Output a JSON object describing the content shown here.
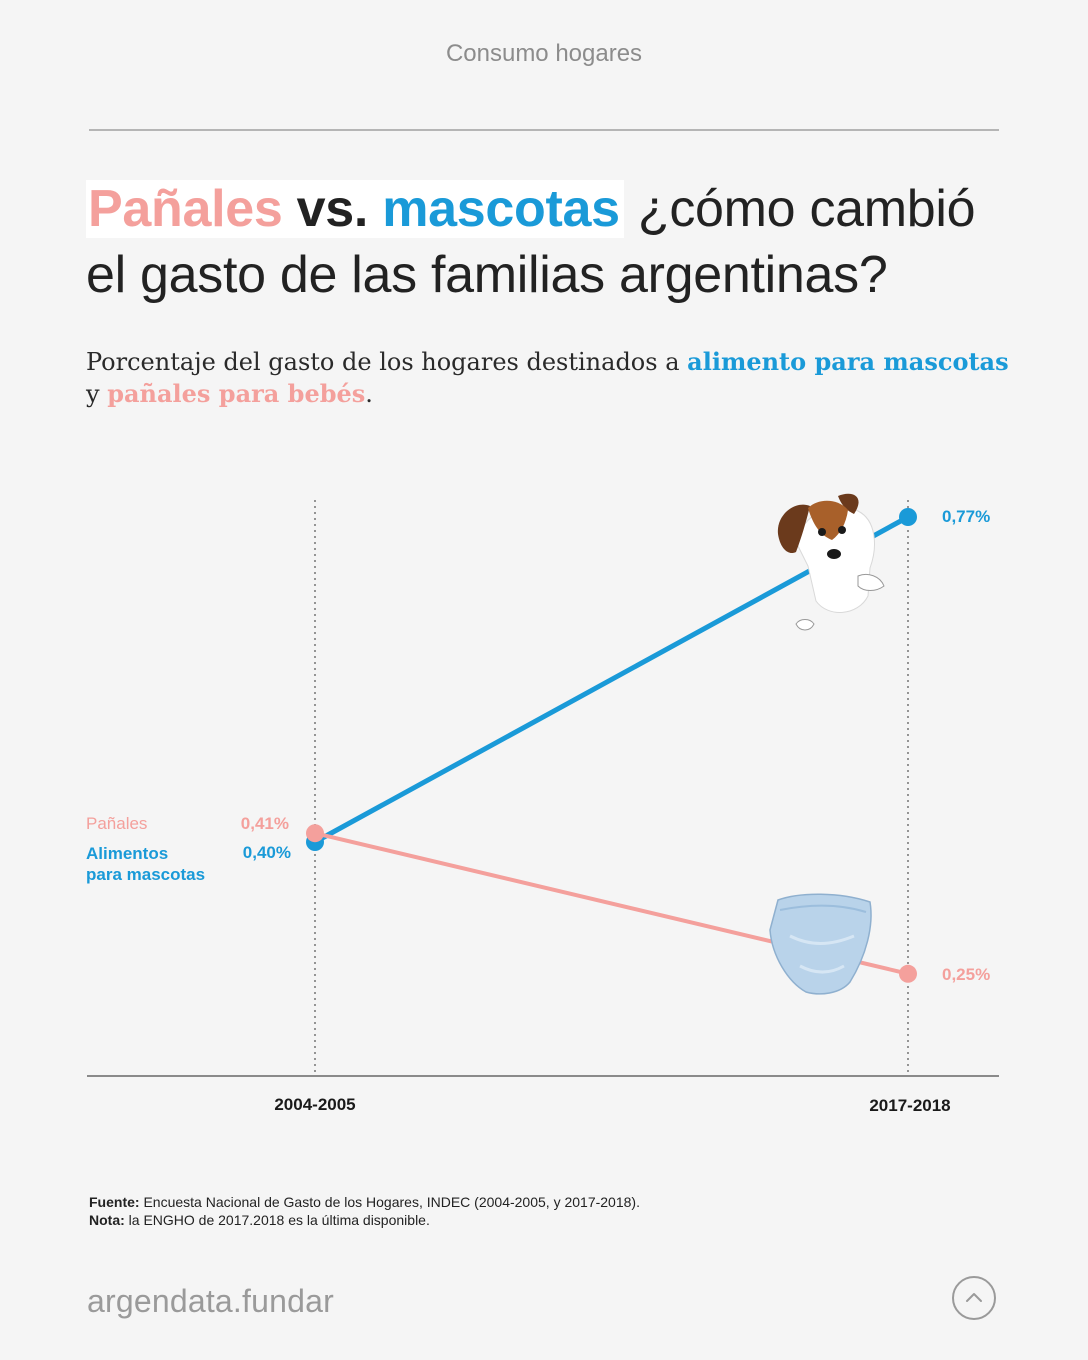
{
  "header": {
    "kicker": "Consumo hogares"
  },
  "title": {
    "part1": "Pañales",
    "part2": "vs.",
    "part3": "mascotas",
    "part4": "¿cómo cambió",
    "part5": "el gasto de las familias argentinas?"
  },
  "subtitle": {
    "part1": "Porcentaje del gasto de los hogares destinados a",
    "part2": "alimento para mascotas",
    "part3": "y",
    "part4": "pañales para bebés",
    "part5": "."
  },
  "colors": {
    "pets": "#1a9ad8",
    "diapers": "#f4a09c",
    "axis": "#555555"
  },
  "chart_data": {
    "type": "line",
    "title": "Porcentaje del gasto de los hogares destinados a alimento para mascotas y pañales para bebés",
    "categories": [
      "2004-2005",
      "2017-2018"
    ],
    "ylim": [
      0,
      0.85
    ],
    "ylabel": "",
    "xlabel": "",
    "series": [
      {
        "name": "Pañales",
        "values": [
          0.41,
          0.25
        ],
        "labels": [
          "0,41%",
          "0,25%"
        ],
        "color": "#f4a09c"
      },
      {
        "name": "Alimentos para mascotas",
        "legend": [
          "Alimentos",
          "para mascotas"
        ],
        "values": [
          0.4,
          0.77
        ],
        "labels": [
          "0,40%",
          "0,77%"
        ],
        "color": "#1a9ad8"
      }
    ]
  },
  "footer": {
    "source_label": "Fuente:",
    "source_text": "Encuesta Nacional de Gasto de los Hogares, INDEC (2004-2005, y 2017-2018).",
    "note_label": "Nota:",
    "note_text": "la ENGHO de 2017.2018 es la última disponible.",
    "brand": "argendata.fundar"
  },
  "icons": {
    "dog": "dog-illustration",
    "diaper": "diaper-illustration",
    "up": "chevron-up-icon"
  }
}
